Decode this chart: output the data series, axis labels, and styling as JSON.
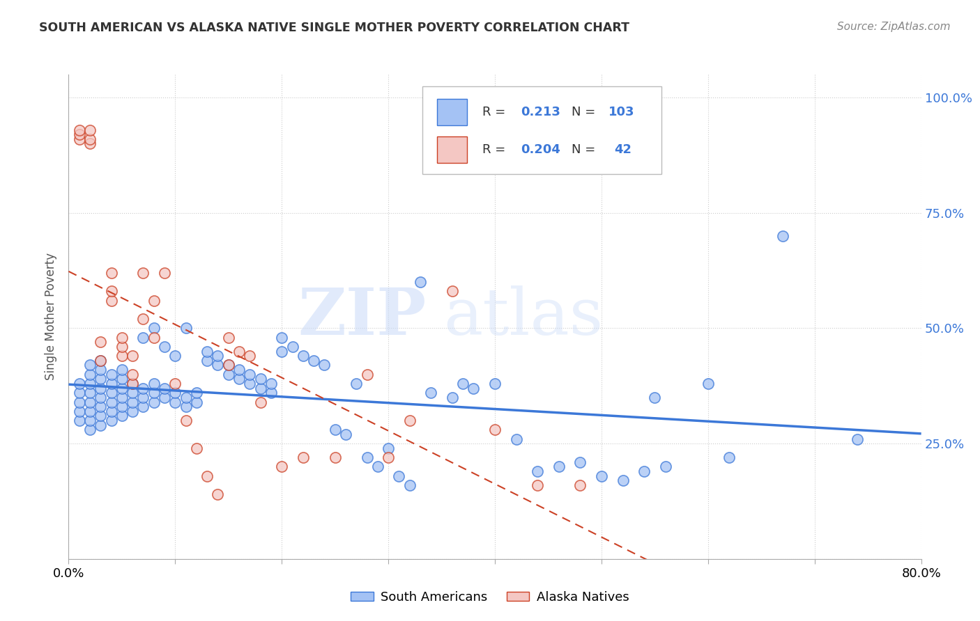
{
  "title": "SOUTH AMERICAN VS ALASKA NATIVE SINGLE MOTHER POVERTY CORRELATION CHART",
  "source": "Source: ZipAtlas.com",
  "ylabel": "Single Mother Poverty",
  "xlim": [
    0.0,
    0.8
  ],
  "ylim": [
    0.0,
    1.05
  ],
  "blue_R": 0.213,
  "blue_N": 103,
  "pink_R": 0.204,
  "pink_N": 42,
  "blue_color": "#a4c2f4",
  "pink_color": "#f4c7c3",
  "blue_edge_color": "#3c78d8",
  "pink_edge_color": "#cc4125",
  "blue_line_color": "#3c78d8",
  "pink_line_color": "#cc4125",
  "watermark_zip": "ZIP",
  "watermark_atlas": "atlas",
  "background_color": "#ffffff",
  "grid_color": "#cccccc",
  "right_tick_color": "#3c78d8",
  "blue_scatter_x": [
    0.01,
    0.01,
    0.01,
    0.01,
    0.01,
    0.02,
    0.02,
    0.02,
    0.02,
    0.02,
    0.02,
    0.02,
    0.02,
    0.03,
    0.03,
    0.03,
    0.03,
    0.03,
    0.03,
    0.03,
    0.03,
    0.04,
    0.04,
    0.04,
    0.04,
    0.04,
    0.04,
    0.05,
    0.05,
    0.05,
    0.05,
    0.05,
    0.05,
    0.06,
    0.06,
    0.06,
    0.06,
    0.07,
    0.07,
    0.07,
    0.07,
    0.08,
    0.08,
    0.08,
    0.08,
    0.09,
    0.09,
    0.09,
    0.1,
    0.1,
    0.1,
    0.11,
    0.11,
    0.11,
    0.12,
    0.12,
    0.13,
    0.13,
    0.14,
    0.14,
    0.15,
    0.15,
    0.16,
    0.16,
    0.17,
    0.17,
    0.18,
    0.18,
    0.19,
    0.19,
    0.2,
    0.2,
    0.21,
    0.22,
    0.23,
    0.24,
    0.25,
    0.26,
    0.27,
    0.28,
    0.29,
    0.3,
    0.31,
    0.32,
    0.33,
    0.34,
    0.36,
    0.37,
    0.38,
    0.4,
    0.42,
    0.44,
    0.46,
    0.48,
    0.5,
    0.52,
    0.54,
    0.55,
    0.56,
    0.6,
    0.62,
    0.67,
    0.74
  ],
  "blue_scatter_y": [
    0.3,
    0.32,
    0.34,
    0.36,
    0.38,
    0.28,
    0.3,
    0.32,
    0.34,
    0.36,
    0.38,
    0.4,
    0.42,
    0.29,
    0.31,
    0.33,
    0.35,
    0.37,
    0.39,
    0.41,
    0.43,
    0.3,
    0.32,
    0.34,
    0.36,
    0.38,
    0.4,
    0.31,
    0.33,
    0.35,
    0.37,
    0.39,
    0.41,
    0.32,
    0.34,
    0.36,
    0.38,
    0.33,
    0.35,
    0.37,
    0.48,
    0.34,
    0.36,
    0.38,
    0.5,
    0.35,
    0.37,
    0.46,
    0.34,
    0.36,
    0.44,
    0.33,
    0.35,
    0.5,
    0.34,
    0.36,
    0.43,
    0.45,
    0.42,
    0.44,
    0.4,
    0.42,
    0.39,
    0.41,
    0.38,
    0.4,
    0.37,
    0.39,
    0.36,
    0.38,
    0.45,
    0.48,
    0.46,
    0.44,
    0.43,
    0.42,
    0.28,
    0.27,
    0.38,
    0.22,
    0.2,
    0.24,
    0.18,
    0.16,
    0.6,
    0.36,
    0.35,
    0.38,
    0.37,
    0.38,
    0.26,
    0.19,
    0.2,
    0.21,
    0.18,
    0.17,
    0.19,
    0.35,
    0.2,
    0.38,
    0.22,
    0.7,
    0.26
  ],
  "pink_scatter_x": [
    0.01,
    0.01,
    0.01,
    0.02,
    0.02,
    0.02,
    0.03,
    0.03,
    0.04,
    0.04,
    0.04,
    0.05,
    0.05,
    0.05,
    0.06,
    0.06,
    0.06,
    0.07,
    0.07,
    0.08,
    0.08,
    0.09,
    0.1,
    0.11,
    0.12,
    0.13,
    0.14,
    0.15,
    0.15,
    0.16,
    0.17,
    0.18,
    0.2,
    0.22,
    0.25,
    0.28,
    0.3,
    0.32,
    0.36,
    0.4,
    0.44,
    0.48
  ],
  "pink_scatter_y": [
    0.91,
    0.92,
    0.93,
    0.9,
    0.91,
    0.93,
    0.43,
    0.47,
    0.56,
    0.58,
    0.62,
    0.44,
    0.46,
    0.48,
    0.38,
    0.4,
    0.44,
    0.62,
    0.52,
    0.48,
    0.56,
    0.62,
    0.38,
    0.3,
    0.24,
    0.18,
    0.14,
    0.42,
    0.48,
    0.45,
    0.44,
    0.34,
    0.2,
    0.22,
    0.22,
    0.4,
    0.22,
    0.3,
    0.58,
    0.28,
    0.16,
    0.16
  ]
}
